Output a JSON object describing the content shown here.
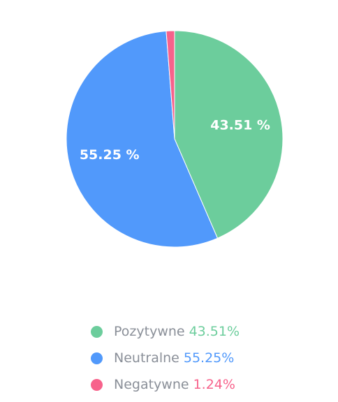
{
  "chart_data": {
    "type": "pie",
    "slices": [
      {
        "name": "Pozytywne",
        "value": 43.51,
        "label": "43.51 %",
        "legend_value": "43.51%",
        "color": "#6ccd9c"
      },
      {
        "name": "Neutralne",
        "value": 55.25,
        "label": "55.25 %",
        "legend_value": "55.25%",
        "color": "#5199fb"
      },
      {
        "name": "Negatywne",
        "value": 1.24,
        "label": "",
        "legend_value": "1.24%",
        "color": "#f7628b"
      }
    ],
    "legend_position": "bottom"
  }
}
